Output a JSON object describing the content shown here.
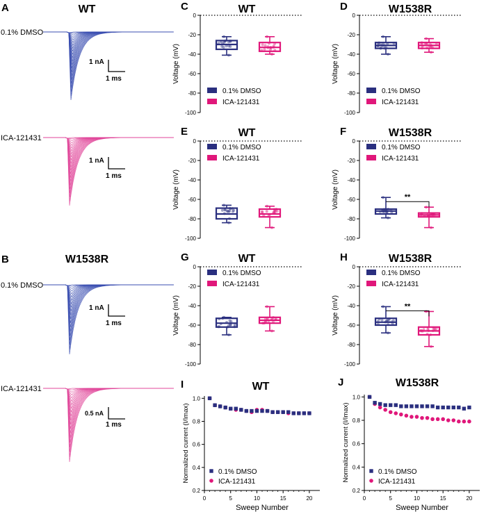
{
  "colors": {
    "dmso": "#2a2f7f",
    "ica": "#e0177a",
    "trace_dmso": "#3a4db0",
    "trace_ica": "#e0479a"
  },
  "panels": {
    "A": {
      "letter": "A",
      "title": "WT"
    },
    "B": {
      "letter": "B",
      "title": "W1538R"
    },
    "C": {
      "letter": "C",
      "title": "WT"
    },
    "D": {
      "letter": "D",
      "title": "W1538R"
    },
    "E": {
      "letter": "E",
      "title": "WT"
    },
    "F": {
      "letter": "F",
      "title": "W1538R"
    },
    "G": {
      "letter": "G",
      "title": "WT"
    },
    "H": {
      "letter": "H",
      "title": "W1538R"
    },
    "I": {
      "letter": "I",
      "title": "WT"
    },
    "J": {
      "letter": "J",
      "title": "W1538R"
    }
  },
  "traces": {
    "a_dmso_label": "0.1% DMSO",
    "a_dmso_nA": "1 nA",
    "a_dmso_ms": "1 ms",
    "a_ica_label": "ICA-121431",
    "a_ica_nA": "1 nA",
    "a_ica_ms": "1 ms",
    "b_dmso_label": "0.1% DMSO",
    "b_dmso_nA": "1 nA",
    "b_dmso_ms": "1 ms",
    "b_ica_label": "ICA-121431",
    "b_ica_nA": "0.5 nA",
    "b_ica_ms": "1 ms"
  },
  "legend": {
    "dmso": "0.1% DMSO",
    "ica": "ICA-121431"
  },
  "sig": "**",
  "chart_data": [
    {
      "panel": "C",
      "type": "box",
      "title": "WT",
      "ylabel": "Voltage (mV)",
      "ylim": [
        -100,
        0
      ],
      "yticks": [
        0,
        -20,
        -40,
        -60,
        -80,
        -100
      ],
      "legend_position": "bottom-left",
      "series": [
        {
          "name": "0.1% DMSO",
          "min": -41,
          "q1": -35,
          "median": -30,
          "q3": -26,
          "max": -22
        },
        {
          "name": "ICA-121431",
          "min": -40,
          "q1": -37,
          "median": -33,
          "q3": -28,
          "max": -22
        }
      ]
    },
    {
      "panel": "D",
      "type": "box",
      "title": "W1538R",
      "ylabel": "Voltage (mV)",
      "ylim": [
        -100,
        0
      ],
      "yticks": [
        0,
        -20,
        -40,
        -60,
        -80,
        -100
      ],
      "legend_position": "bottom-left",
      "series": [
        {
          "name": "0.1% DMSO",
          "min": -40,
          "q1": -34,
          "median": -31,
          "q3": -28,
          "max": -22
        },
        {
          "name": "ICA-121431",
          "min": -38,
          "q1": -34,
          "median": -31,
          "q3": -28,
          "max": -24
        }
      ]
    },
    {
      "panel": "E",
      "type": "box",
      "title": "WT",
      "ylabel": "Voltage (mV)",
      "ylim": [
        -100,
        0
      ],
      "yticks": [
        0,
        -20,
        -40,
        -60,
        -80,
        -100
      ],
      "legend_position": "top-left",
      "series": [
        {
          "name": "0.1% DMSO",
          "min": -84,
          "q1": -80,
          "median": -75,
          "q3": -69,
          "max": -66
        },
        {
          "name": "ICA-121431",
          "min": -89,
          "q1": -78,
          "median": -75,
          "q3": -70,
          "max": -67
        }
      ]
    },
    {
      "panel": "F",
      "type": "box",
      "title": "W1538R",
      "ylabel": "Voltage (mV)",
      "ylim": [
        -100,
        0
      ],
      "yticks": [
        0,
        -20,
        -40,
        -60,
        -80,
        -100
      ],
      "legend_position": "top-left",
      "significance": "**",
      "series": [
        {
          "name": "0.1% DMSO",
          "min": -79,
          "q1": -75,
          "median": -72,
          "q3": -70,
          "max": -58
        },
        {
          "name": "ICA-121431",
          "min": -89,
          "q1": -78,
          "median": -76,
          "q3": -74,
          "max": -68
        }
      ]
    },
    {
      "panel": "G",
      "type": "box",
      "title": "WT",
      "ylabel": "Voltage (mV)",
      "ylim": [
        -100,
        0
      ],
      "yticks": [
        0,
        -20,
        -40,
        -60,
        -80,
        -100
      ],
      "legend_position": "top-left",
      "series": [
        {
          "name": "0.1% DMSO",
          "min": -70,
          "q1": -62,
          "median": -58,
          "q3": -53,
          "max": -52
        },
        {
          "name": "ICA-121431",
          "min": -66,
          "q1": -58,
          "median": -55,
          "q3": -52,
          "max": -41
        }
      ]
    },
    {
      "panel": "H",
      "type": "box",
      "title": "W1538R",
      "ylabel": "Voltage (mV)",
      "ylim": [
        -100,
        0
      ],
      "yticks": [
        0,
        -20,
        -40,
        -60,
        -80,
        -100
      ],
      "legend_position": "top-left",
      "significance": "**",
      "series": [
        {
          "name": "0.1% DMSO",
          "min": -68,
          "q1": -60,
          "median": -57,
          "q3": -53,
          "max": -41
        },
        {
          "name": "ICA-121431",
          "min": -82,
          "q1": -70,
          "median": -66,
          "q3": -62,
          "max": -46
        }
      ]
    },
    {
      "panel": "I",
      "type": "scatter",
      "title": "WT",
      "xlabel": "Sweep Number",
      "ylabel": "Normalized current (I/Imax)",
      "xlim": [
        0,
        22
      ],
      "ylim": [
        0.2,
        1.02
      ],
      "xticks": [
        0,
        5,
        10,
        15,
        20
      ],
      "yticks": [
        0.2,
        0.4,
        0.6,
        0.8,
        1.0
      ],
      "legend_position": "bottom-left",
      "x": [
        1,
        2,
        3,
        4,
        5,
        6,
        7,
        8,
        9,
        10,
        11,
        12,
        13,
        14,
        15,
        16,
        17,
        18,
        19,
        20
      ],
      "series": [
        {
          "name": "0.1% DMSO",
          "values": [
            1.0,
            0.94,
            0.93,
            0.92,
            0.91,
            0.91,
            0.9,
            0.89,
            0.89,
            0.89,
            0.89,
            0.89,
            0.88,
            0.88,
            0.88,
            0.88,
            0.87,
            0.87,
            0.87,
            0.87
          ]
        },
        {
          "name": "ICA-121431",
          "values": [
            1.0,
            0.94,
            0.93,
            0.92,
            0.91,
            0.9,
            0.9,
            0.89,
            0.88,
            0.9,
            0.9,
            0.89,
            0.88,
            0.88,
            0.88,
            0.87,
            0.87,
            0.87,
            0.87,
            0.87
          ]
        }
      ]
    },
    {
      "panel": "J",
      "type": "scatter",
      "title": "W1538R",
      "xlabel": "Sweep Number",
      "ylabel": "Normalized current (I/Imax)",
      "xlim": [
        0,
        22
      ],
      "ylim": [
        0.2,
        1.02
      ],
      "xticks": [
        0,
        5,
        10,
        15,
        20
      ],
      "yticks": [
        0.2,
        0.4,
        0.6,
        0.8,
        1.0
      ],
      "legend_position": "bottom-left",
      "x": [
        1,
        2,
        3,
        4,
        5,
        6,
        7,
        8,
        9,
        10,
        11,
        12,
        13,
        14,
        15,
        16,
        17,
        18,
        19,
        20
      ],
      "series": [
        {
          "name": "0.1% DMSO",
          "values": [
            1.0,
            0.95,
            0.94,
            0.93,
            0.93,
            0.93,
            0.92,
            0.92,
            0.92,
            0.92,
            0.92,
            0.92,
            0.92,
            0.91,
            0.91,
            0.91,
            0.91,
            0.91,
            0.9,
            0.91
          ]
        },
        {
          "name": "ICA-121431",
          "values": [
            1.0,
            0.94,
            0.91,
            0.89,
            0.87,
            0.86,
            0.85,
            0.84,
            0.83,
            0.83,
            0.82,
            0.82,
            0.81,
            0.81,
            0.81,
            0.8,
            0.8,
            0.79,
            0.79,
            0.79
          ]
        }
      ]
    }
  ]
}
